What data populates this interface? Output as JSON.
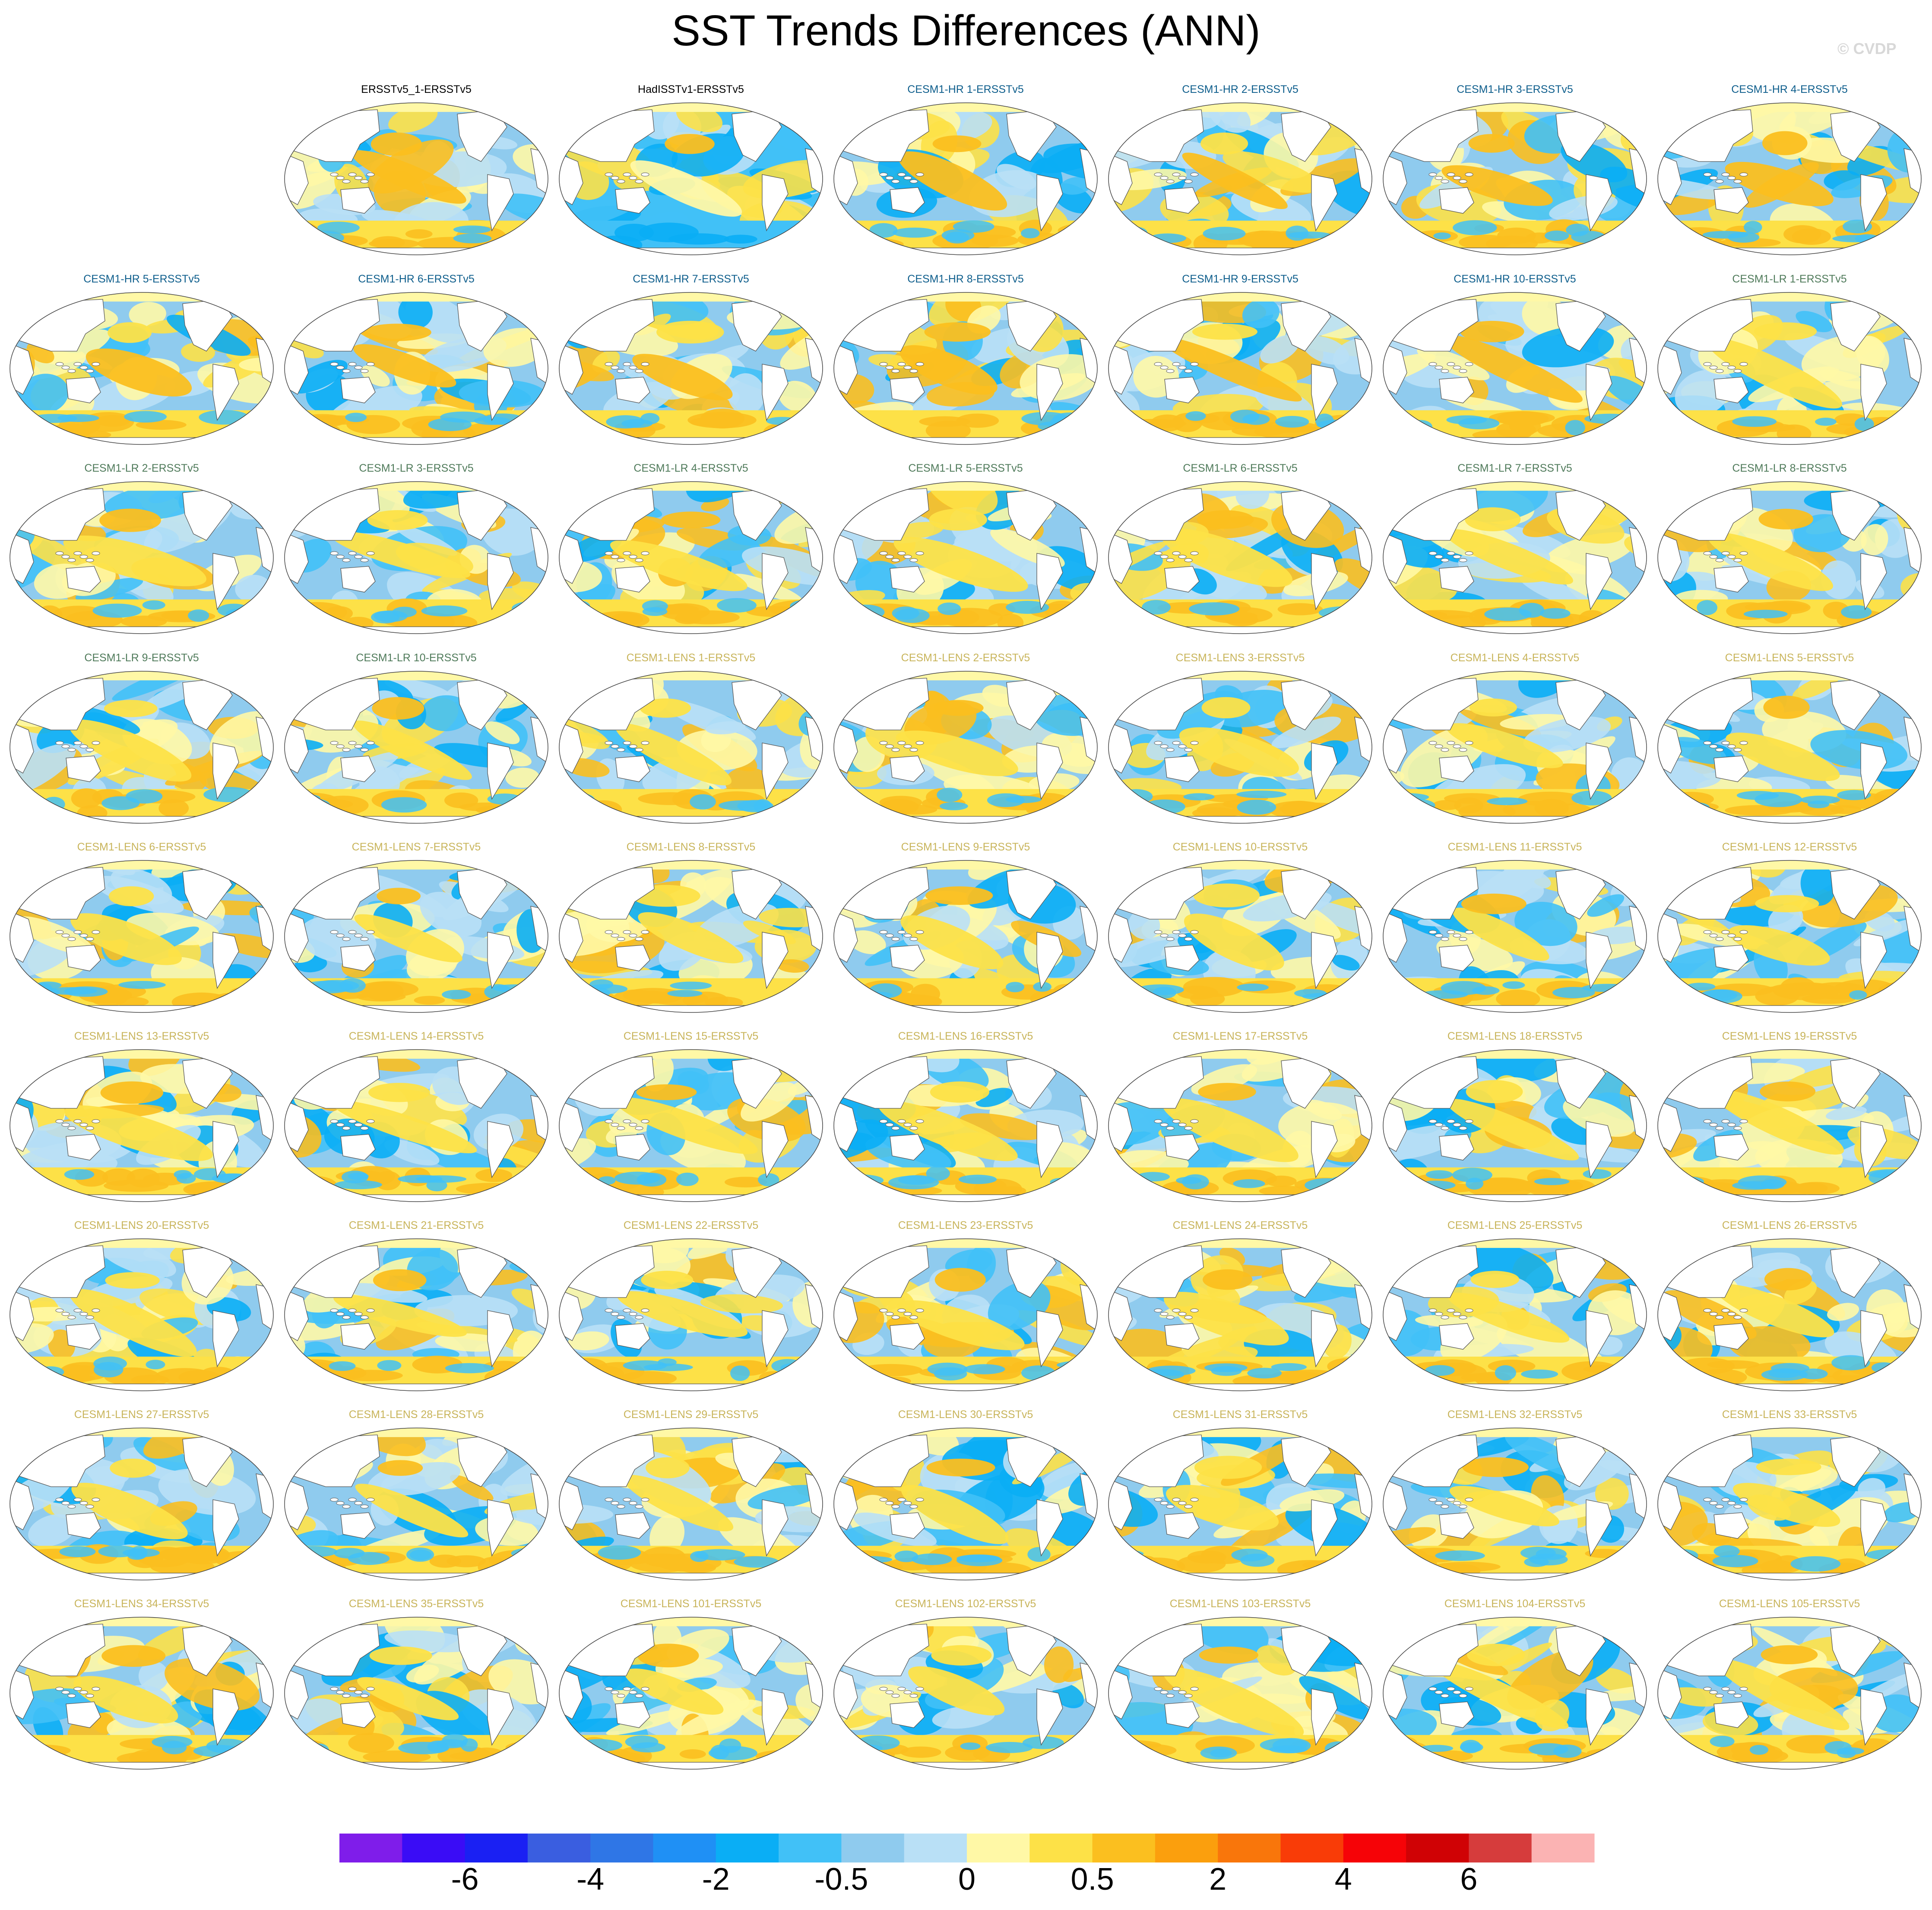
{
  "title": "SST Trends Differences (ANN)",
  "credit": "© CVDP",
  "panels": [
    {
      "label": "ERSSTv5_1-ERSSTv5",
      "group": "obs"
    },
    {
      "label": "HadISSTv1-ERSSTv5",
      "group": "obs"
    },
    {
      "label": "CESM1-HR 1-ERSSTv5",
      "group": "hr"
    },
    {
      "label": "CESM1-HR 2-ERSSTv5",
      "group": "hr"
    },
    {
      "label": "CESM1-HR 3-ERSSTv5",
      "group": "hr"
    },
    {
      "label": "CESM1-HR 4-ERSSTv5",
      "group": "hr"
    },
    {
      "label": "CESM1-HR 5-ERSSTv5",
      "group": "hr"
    },
    {
      "label": "CESM1-HR 6-ERSSTv5",
      "group": "hr"
    },
    {
      "label": "CESM1-HR 7-ERSSTv5",
      "group": "hr"
    },
    {
      "label": "CESM1-HR 8-ERSSTv5",
      "group": "hr"
    },
    {
      "label": "CESM1-HR 9-ERSSTv5",
      "group": "hr"
    },
    {
      "label": "CESM1-HR 10-ERSSTv5",
      "group": "hr"
    },
    {
      "label": "CESM1-LR 1-ERSSTv5",
      "group": "lr"
    },
    {
      "label": "CESM1-LR 2-ERSSTv5",
      "group": "lr"
    },
    {
      "label": "CESM1-LR 3-ERSSTv5",
      "group": "lr"
    },
    {
      "label": "CESM1-LR 4-ERSSTv5",
      "group": "lr"
    },
    {
      "label": "CESM1-LR 5-ERSSTv5",
      "group": "lr"
    },
    {
      "label": "CESM1-LR 6-ERSSTv5",
      "group": "lr"
    },
    {
      "label": "CESM1-LR 7-ERSSTv5",
      "group": "lr"
    },
    {
      "label": "CESM1-LR 8-ERSSTv5",
      "group": "lr"
    },
    {
      "label": "CESM1-LR 9-ERSSTv5",
      "group": "lr"
    },
    {
      "label": "CESM1-LR 10-ERSSTv5",
      "group": "lr"
    },
    {
      "label": "CESM1-LENS 1-ERSSTv5",
      "group": "lens"
    },
    {
      "label": "CESM1-LENS 2-ERSSTv5",
      "group": "lens"
    },
    {
      "label": "CESM1-LENS 3-ERSSTv5",
      "group": "lens"
    },
    {
      "label": "CESM1-LENS 4-ERSSTv5",
      "group": "lens"
    },
    {
      "label": "CESM1-LENS 5-ERSSTv5",
      "group": "lens"
    },
    {
      "label": "CESM1-LENS 6-ERSSTv5",
      "group": "lens"
    },
    {
      "label": "CESM1-LENS 7-ERSSTv5",
      "group": "lens"
    },
    {
      "label": "CESM1-LENS 8-ERSSTv5",
      "group": "lens"
    },
    {
      "label": "CESM1-LENS 9-ERSSTv5",
      "group": "lens"
    },
    {
      "label": "CESM1-LENS 10-ERSSTv5",
      "group": "lens"
    },
    {
      "label": "CESM1-LENS 11-ERSSTv5",
      "group": "lens"
    },
    {
      "label": "CESM1-LENS 12-ERSSTv5",
      "group": "lens"
    },
    {
      "label": "CESM1-LENS 13-ERSSTv5",
      "group": "lens"
    },
    {
      "label": "CESM1-LENS 14-ERSSTv5",
      "group": "lens"
    },
    {
      "label": "CESM1-LENS 15-ERSSTv5",
      "group": "lens"
    },
    {
      "label": "CESM1-LENS 16-ERSSTv5",
      "group": "lens"
    },
    {
      "label": "CESM1-LENS 17-ERSSTv5",
      "group": "lens"
    },
    {
      "label": "CESM1-LENS 18-ERSSTv5",
      "group": "lens"
    },
    {
      "label": "CESM1-LENS 19-ERSSTv5",
      "group": "lens"
    },
    {
      "label": "CESM1-LENS 20-ERSSTv5",
      "group": "lens"
    },
    {
      "label": "CESM1-LENS 21-ERSSTv5",
      "group": "lens"
    },
    {
      "label": "CESM1-LENS 22-ERSSTv5",
      "group": "lens"
    },
    {
      "label": "CESM1-LENS 23-ERSSTv5",
      "group": "lens"
    },
    {
      "label": "CESM1-LENS 24-ERSSTv5",
      "group": "lens"
    },
    {
      "label": "CESM1-LENS 25-ERSSTv5",
      "group": "lens"
    },
    {
      "label": "CESM1-LENS 26-ERSSTv5",
      "group": "lens"
    },
    {
      "label": "CESM1-LENS 27-ERSSTv5",
      "group": "lens"
    },
    {
      "label": "CESM1-LENS 28-ERSSTv5",
      "group": "lens"
    },
    {
      "label": "CESM1-LENS 29-ERSSTv5",
      "group": "lens"
    },
    {
      "label": "CESM1-LENS 30-ERSSTv5",
      "group": "lens"
    },
    {
      "label": "CESM1-LENS 31-ERSSTv5",
      "group": "lens"
    },
    {
      "label": "CESM1-LENS 32-ERSSTv5",
      "group": "lens"
    },
    {
      "label": "CESM1-LENS 33-ERSSTv5",
      "group": "lens"
    },
    {
      "label": "CESM1-LENS 34-ERSSTv5",
      "group": "lens"
    },
    {
      "label": "CESM1-LENS 35-ERSSTv5",
      "group": "lens"
    },
    {
      "label": "CESM1-LENS 101-ERSSTv5",
      "group": "lens"
    },
    {
      "label": "CESM1-LENS 102-ERSSTv5",
      "group": "lens"
    },
    {
      "label": "CESM1-LENS 103-ERSSTv5",
      "group": "lens"
    },
    {
      "label": "CESM1-LENS 104-ERSSTv5",
      "group": "lens"
    },
    {
      "label": "CESM1-LENS 105-ERSSTv5",
      "group": "lens"
    }
  ],
  "group_colors": {
    "obs": "#000000",
    "hr": "#0e5e8c",
    "lr": "#4f7a5a",
    "lens": "#c8b45a"
  },
  "colorbar": {
    "colors": [
      "#7f1dea",
      "#3a0cf6",
      "#1a20f3",
      "#3a5ee0",
      "#2f76e6",
      "#1f90f5",
      "#0aaef5",
      "#41c1f7",
      "#8fcbee",
      "#b9e0f6",
      "#fff8a6",
      "#fde147",
      "#fbbf1f",
      "#fb9f0d",
      "#f9760b",
      "#f93c07",
      "#f60307",
      "#d00205",
      "#d63c3c",
      "#fbb3b3"
    ],
    "tick_labels": [
      "-6",
      "-4",
      "-2",
      "-0.5",
      "0",
      "0.5",
      "2",
      "4",
      "6"
    ]
  },
  "palette": {
    "land": "#ffffff",
    "coast": "#555555",
    "cool_strong": "#0aaef5",
    "cool": "#41c1f7",
    "cool_light": "#8fcbee",
    "cool_faint": "#b9e0f6",
    "neutral": "#fff8a6",
    "warm": "#fde147",
    "warm_mid": "#fbbf1f",
    "warm_strong": "#fb9f0d",
    "hot": "#f93c07"
  }
}
